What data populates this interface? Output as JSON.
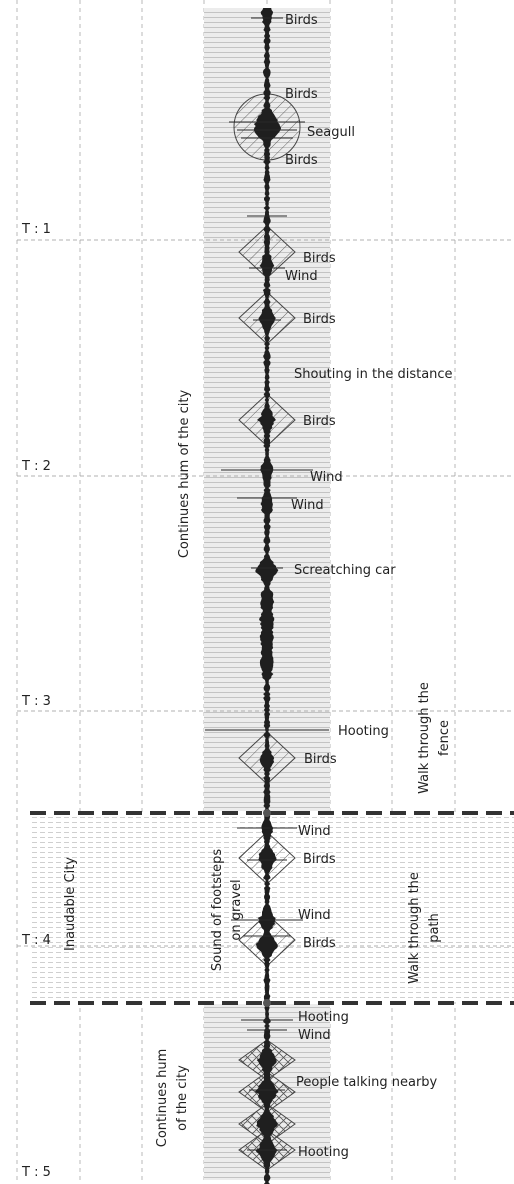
{
  "time_markers": [
    "T : 1",
    "T : 2",
    "T : 3",
    "T : 4",
    "T : 5"
  ],
  "events": [
    {
      "label": "Birds"
    },
    {
      "label": "Birds"
    },
    {
      "label": "Seagull"
    },
    {
      "label": "Birds"
    },
    {
      "label": "Birds"
    },
    {
      "label": "Wind"
    },
    {
      "label": "Birds"
    },
    {
      "label": "Shouting in the distance"
    },
    {
      "label": "Birds"
    },
    {
      "label": "Wind"
    },
    {
      "label": "Wind"
    },
    {
      "label": "Screatching car"
    },
    {
      "label": "Hooting"
    },
    {
      "label": "Birds"
    },
    {
      "label": "Wind"
    },
    {
      "label": "Birds"
    },
    {
      "label": "Wind"
    },
    {
      "label": "Birds"
    },
    {
      "label": "Hooting"
    },
    {
      "label": "Wind"
    },
    {
      "label": "People talking nearby"
    },
    {
      "label": "Hooting"
    }
  ],
  "vertical_labels": {
    "hum_top": "Continues hum of the city",
    "fence": [
      "Walk through the",
      "fence"
    ],
    "inaudible": "Inaudable City",
    "footsteps": [
      "Sound of footsteps",
      "on gravel"
    ],
    "path": [
      "Walk through  the",
      "path"
    ],
    "hum_bottom": [
      "Continues hum",
      "of the city"
    ]
  },
  "colors": {
    "waveform": "#1f1f1f",
    "hum_band": "#d9d9d9",
    "grid": "#9a9a9a",
    "section_divider": "#333333"
  }
}
